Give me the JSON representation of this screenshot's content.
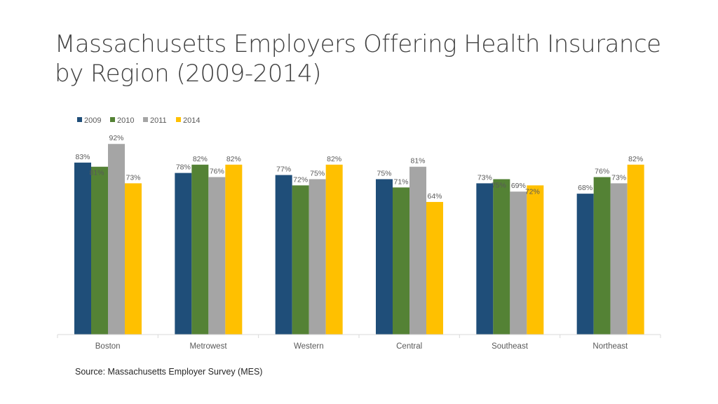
{
  "title": "Massachusetts Employers Offering Health Insurance by Region (2009-2014)",
  "source": "Source: Massachusetts Employer Survey (MES)",
  "chart_data": {
    "type": "bar",
    "categories": [
      "Boston",
      "Metrowest",
      "Western",
      "Central",
      "Southeast",
      "Northeast"
    ],
    "series": [
      {
        "name": "2009",
        "color": "#1F4E79",
        "values": [
          83,
          78,
          77,
          75,
          73,
          68
        ],
        "labels": [
          "83%",
          "78%",
          "77%",
          "75%",
          "73%",
          "68%"
        ]
      },
      {
        "name": "2010",
        "color": "#548235",
        "values": [
          81,
          82,
          72,
          71,
          75,
          76
        ],
        "labels": [
          "81%",
          "82%",
          "72%",
          "71%",
          "75%",
          "76%"
        ]
      },
      {
        "name": "2011",
        "color": "#A5A5A5",
        "values": [
          92,
          76,
          75,
          81,
          69,
          73
        ],
        "labels": [
          "92%",
          "76%",
          "75%",
          "81%",
          "69%",
          "73%"
        ]
      },
      {
        "name": "2014",
        "color": "#FFC000",
        "values": [
          73,
          82,
          82,
          64,
          72,
          82
        ],
        "labels": [
          "73%",
          "82%",
          "82%",
          "64%",
          "72%",
          "82%"
        ]
      }
    ],
    "ylim": [
      0,
      100
    ],
    "grid": false,
    "legend": "top-left",
    "data_labels": true
  }
}
